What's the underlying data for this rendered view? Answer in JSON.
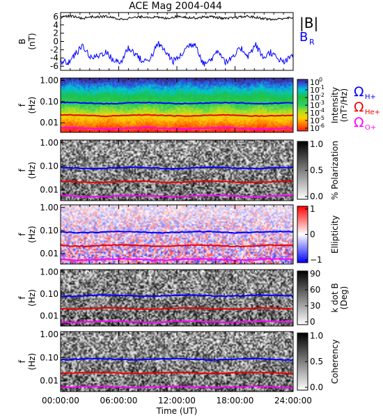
{
  "title": "ACE Mag 2004-044",
  "chart_data": [
    {
      "type": "line",
      "ylabel_top": "B",
      "ylabel_bottom": "(nT)",
      "ylim": [
        -7,
        7
      ],
      "yticks": [
        6,
        4,
        2,
        0,
        -2,
        -4,
        -6
      ],
      "legend": [
        "|B|",
        "B",
        "R"
      ],
      "legend_colors": [
        "#000000",
        "#0000ff",
        "#0000ff"
      ],
      "series": [
        {
          "name": "|B|",
          "color": "#000000",
          "values": [
            5.8,
            6.2,
            5.9,
            5.6,
            6.0,
            5.9,
            6.1,
            5.7,
            5.4,
            5.6,
            5.8,
            6.0,
            5.9,
            5.8,
            5.6,
            5.9,
            6.1,
            5.8,
            5.7,
            5.9,
            6.0,
            5.8,
            5.5,
            5.7,
            5.9,
            6.1,
            5.8,
            5.6,
            5.3,
            5.4,
            5.7,
            5.6
          ]
        },
        {
          "name": "B",
          "sub": "R",
          "color": "#0000ff",
          "values": [
            -4.8,
            -5.2,
            -3.0,
            -1.0,
            -4.0,
            -3.5,
            -2.5,
            -4.5,
            -5.2,
            -1.5,
            -3.0,
            -5.0,
            -4.0,
            -0.5,
            -2.5,
            -4.8,
            -3.5,
            -1.0,
            -0.5,
            -5.5,
            -4.5,
            -2.0,
            -5.0,
            -4.0,
            -1.5,
            -3.5,
            -0.8,
            -4.0,
            -2.5,
            -4.5,
            -5.0,
            -3.0
          ]
        }
      ]
    },
    {
      "type": "heatmap",
      "ylabel_top": "f",
      "ylabel_bottom": "(Hz)",
      "yticks": [
        "1.00",
        "0.10",
        "0.01"
      ],
      "colorbar_ticks": [
        "10",
        "10",
        "10",
        "10",
        "10",
        "10",
        "10"
      ],
      "colorbar_exps": [
        "0",
        "-1",
        "-2",
        "-3",
        "-4",
        "-5",
        "-6"
      ],
      "colorbar_label": "Intensity (nT²/Hz)",
      "colorbar_label_main": "Intensity",
      "colorbar_label_unit": "(nT²/Hz)",
      "legend": [
        "Ω",
        "H+",
        "Ω",
        "He+",
        "Ω",
        "O+"
      ],
      "legend_colors": [
        "#0000ff",
        "#0000ff",
        "#ee0000",
        "#ee0000",
        "#ff00ff",
        "#ff00ff"
      ]
    },
    {
      "type": "heatmap",
      "ylabel_top": "f",
      "ylabel_bottom": "(Hz)",
      "yticks": [
        "1.00",
        "0.10",
        "0.01"
      ],
      "colorbar_ticks": [
        "1.0",
        "0.5",
        "0.0"
      ],
      "colorbar_label": "% Polarization"
    },
    {
      "type": "heatmap",
      "ylabel_top": "f",
      "ylabel_bottom": "(Hz)",
      "yticks": [
        "1.00",
        "0.10",
        "0.01"
      ],
      "colorbar_ticks": [
        "1",
        "0",
        "−1"
      ],
      "colorbar_label": "Ellipticity"
    },
    {
      "type": "heatmap",
      "ylabel_top": "f",
      "ylabel_bottom": "(Hz)",
      "yticks": [
        "1.00",
        "0.10",
        "0.01"
      ],
      "colorbar_ticks": [
        "90",
        "60",
        "30",
        "0"
      ],
      "colorbar_label": "k dot B (Deg)",
      "colorbar_label_main": "k dot B",
      "colorbar_label_unit": "(Deg)"
    },
    {
      "type": "heatmap",
      "ylabel_top": "f",
      "ylabel_bottom": "(Hz)",
      "yticks": [
        "1.00",
        "0.10",
        "0.01"
      ],
      "colorbar_ticks": [
        "1.0",
        "0.5",
        "0.0"
      ],
      "colorbar_label": "Coherency"
    }
  ],
  "xaxis": {
    "ticks": [
      "00:00:00",
      "06:00:00",
      "12:00:00",
      "18:00:00",
      "24:00:00"
    ],
    "label": "Time (UT)"
  },
  "gyro_lines": {
    "H+": {
      "color": "#0000ff",
      "freq_hz": 0.085
    },
    "He+": {
      "color": "#ee0000",
      "freq_hz": 0.022
    },
    "O+": {
      "color": "#ff00ff",
      "freq_hz": 0.0055
    }
  }
}
